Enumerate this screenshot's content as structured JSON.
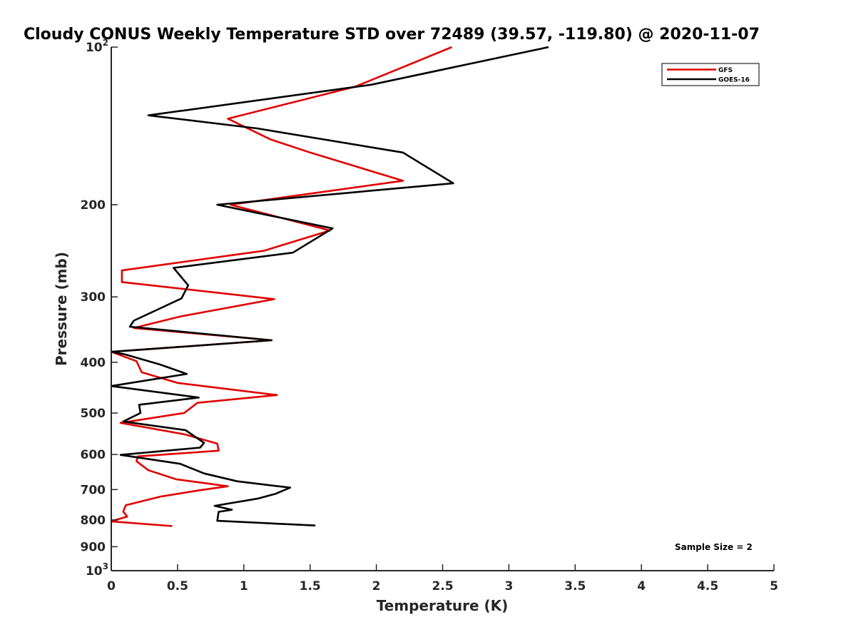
{
  "chart_data": {
    "type": "line",
    "title": "Cloudy CONUS Weekly Temperature STD over 72489 (39.57, -119.80) @ 2020-11-07",
    "xlabel": "Temperature (K)",
    "ylabel": "Pressure (mb)",
    "xlim": [
      0,
      5
    ],
    "ylim": [
      100,
      1000
    ],
    "yscale": "log",
    "y_reversed": true,
    "x_ticks": [
      0,
      0.5,
      1,
      1.5,
      2,
      2.5,
      3,
      3.5,
      4,
      4.5,
      5
    ],
    "x_tick_labels": [
      "0",
      "0.5",
      "1",
      "1.5",
      "2",
      "2.5",
      "3",
      "3.5",
      "4",
      "4.5",
      "5"
    ],
    "y_ticks": [
      {
        "value": 100,
        "base": "10",
        "exp": "2"
      },
      {
        "value": 200,
        "label": "200"
      },
      {
        "value": 300,
        "label": "300"
      },
      {
        "value": 400,
        "label": "400"
      },
      {
        "value": 500,
        "label": "500"
      },
      {
        "value": 600,
        "label": "600"
      },
      {
        "value": 700,
        "label": "700"
      },
      {
        "value": 800,
        "label": "800"
      },
      {
        "value": 900,
        "label": "900"
      },
      {
        "value": 1000,
        "base": "10",
        "exp": "3"
      }
    ],
    "grid": false,
    "legend_position": "top-right",
    "series": [
      {
        "name": "GFS",
        "color": "#e00000",
        "points": [
          [
            2.57,
            100
          ],
          [
            1.84,
            119
          ],
          [
            0.88,
            137
          ],
          [
            1.2,
            150
          ],
          [
            1.5,
            159
          ],
          [
            2.2,
            180
          ],
          [
            0.9,
            200
          ],
          [
            1.65,
            224
          ],
          [
            1.15,
            245
          ],
          [
            0.08,
            267
          ],
          [
            0.08,
            281
          ],
          [
            1.23,
            303
          ],
          [
            0.52,
            327
          ],
          [
            0.17,
            344
          ],
          [
            1.21,
            363
          ],
          [
            0.0,
            382
          ],
          [
            0.19,
            398
          ],
          [
            0.23,
            418
          ],
          [
            0.5,
            438
          ],
          [
            1.25,
            462
          ],
          [
            0.65,
            478
          ],
          [
            0.55,
            500
          ],
          [
            0.07,
            522
          ],
          [
            0.55,
            549
          ],
          [
            0.8,
            572
          ],
          [
            0.81,
            590
          ],
          [
            0.2,
            605
          ],
          [
            0.19,
            618
          ],
          [
            0.28,
            643
          ],
          [
            0.49,
            669
          ],
          [
            0.88,
            690
          ],
          [
            0.67,
            702
          ],
          [
            0.37,
            722
          ],
          [
            0.11,
            750
          ],
          [
            0.09,
            771
          ],
          [
            0.12,
            788
          ],
          [
            0.0,
            805
          ],
          [
            0.46,
            822
          ]
        ]
      },
      {
        "name": "GOES-16",
        "color": "#000000",
        "points": [
          [
            3.3,
            100
          ],
          [
            1.96,
            118
          ],
          [
            0.28,
            135
          ],
          [
            1.1,
            143
          ],
          [
            2.2,
            159
          ],
          [
            2.58,
            182
          ],
          [
            0.8,
            200
          ],
          [
            1.67,
            222
          ],
          [
            1.37,
            247
          ],
          [
            0.47,
            264
          ],
          [
            0.58,
            285
          ],
          [
            0.53,
            302
          ],
          [
            0.17,
            333
          ],
          [
            0.14,
            342
          ],
          [
            1.21,
            363
          ],
          [
            0.0,
            382
          ],
          [
            0.1,
            386
          ],
          [
            0.37,
            404
          ],
          [
            0.57,
            421
          ],
          [
            0.0,
            444
          ],
          [
            0.66,
            467
          ],
          [
            0.21,
            482
          ],
          [
            0.22,
            500
          ],
          [
            0.09,
            519
          ],
          [
            0.56,
            539
          ],
          [
            0.7,
            570
          ],
          [
            0.67,
            582
          ],
          [
            0.07,
            601
          ],
          [
            0.52,
            625
          ],
          [
            0.7,
            652
          ],
          [
            0.95,
            675
          ],
          [
            1.35,
            694
          ],
          [
            1.24,
            713
          ],
          [
            1.11,
            728
          ],
          [
            0.78,
            752
          ],
          [
            0.91,
            765
          ],
          [
            0.81,
            772
          ],
          [
            0.8,
            803
          ],
          [
            1.54,
            820
          ]
        ]
      }
    ],
    "annotation": "Sample Size = 2"
  }
}
